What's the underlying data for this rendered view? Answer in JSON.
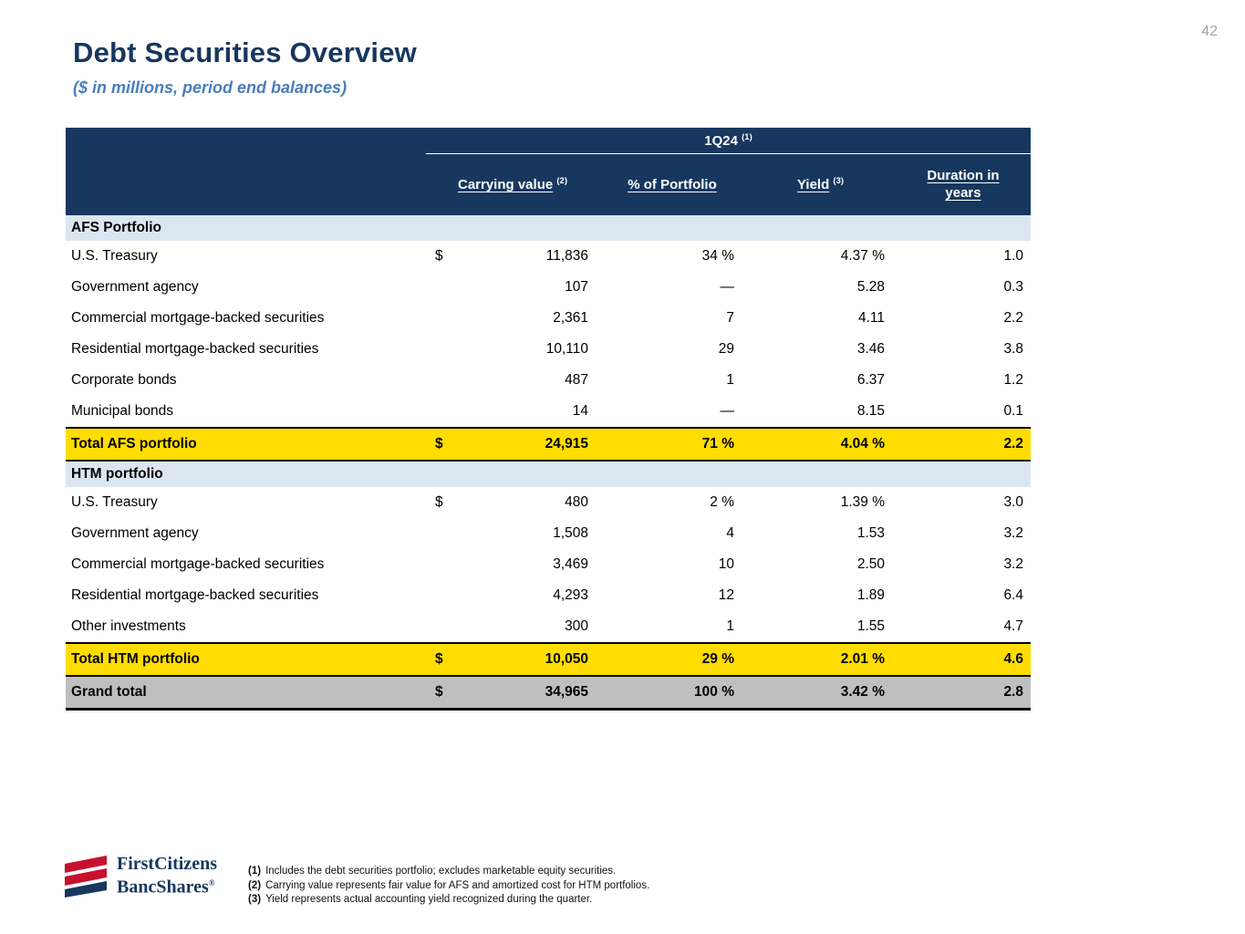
{
  "page": {
    "number": "42",
    "title": "Debt Securities Overview",
    "subtitle": "($ in millions, period end balances)"
  },
  "table": {
    "period": {
      "label": "1Q24",
      "footnote": "(1)"
    },
    "columns": [
      {
        "label": "Carrying value",
        "footnote": "(2)"
      },
      {
        "label": "% of Portfolio",
        "footnote": ""
      },
      {
        "label": "Yield",
        "footnote": "(3)"
      },
      {
        "label": "Duration in years",
        "footnote": ""
      }
    ],
    "rows": [
      {
        "type": "section",
        "label": "AFS Portfolio"
      },
      {
        "type": "data",
        "label": "U.S. Treasury",
        "dollar": "$",
        "carrying": "11,836",
        "pct": "34 %",
        "yield": "4.37 %",
        "duration": "1.0"
      },
      {
        "type": "data",
        "label": "Government agency",
        "dollar": "",
        "carrying": "107",
        "pct": "—",
        "yield": "5.28",
        "duration": "0.3"
      },
      {
        "type": "data",
        "label": "Commercial mortgage-backed securities",
        "dollar": "",
        "carrying": "2,361",
        "pct": "7",
        "yield": "4.11",
        "duration": "2.2"
      },
      {
        "type": "data",
        "label": "Residential mortgage-backed securities",
        "dollar": "",
        "carrying": "10,110",
        "pct": "29",
        "yield": "3.46",
        "duration": "3.8"
      },
      {
        "type": "data",
        "label": "Corporate bonds",
        "dollar": "",
        "carrying": "487",
        "pct": "1",
        "yield": "6.37",
        "duration": "1.2"
      },
      {
        "type": "data",
        "label": "Municipal bonds",
        "dollar": "",
        "carrying": "14",
        "pct": "—",
        "yield": "8.15",
        "duration": "0.1"
      },
      {
        "type": "total",
        "label": "Total AFS portfolio",
        "dollar": "$",
        "carrying": "24,915",
        "pct": "71 %",
        "yield": "4.04 %",
        "duration": "2.2"
      },
      {
        "type": "section",
        "label": "HTM portfolio"
      },
      {
        "type": "data",
        "label": "U.S. Treasury",
        "dollar": "$",
        "carrying": "480",
        "pct": "2 %",
        "yield": "1.39 %",
        "duration": "3.0"
      },
      {
        "type": "data",
        "label": "Government agency",
        "dollar": "",
        "carrying": "1,508",
        "pct": "4",
        "yield": "1.53",
        "duration": "3.2"
      },
      {
        "type": "data",
        "label": "Commercial mortgage-backed securities",
        "dollar": "",
        "carrying": "3,469",
        "pct": "10",
        "yield": "2.50",
        "duration": "3.2"
      },
      {
        "type": "data",
        "label": "Residential mortgage-backed securities",
        "dollar": "",
        "carrying": "4,293",
        "pct": "12",
        "yield": "1.89",
        "duration": "6.4"
      },
      {
        "type": "data",
        "label": "Other investments",
        "dollar": "",
        "carrying": "300",
        "pct": "1",
        "yield": "1.55",
        "duration": "4.7"
      },
      {
        "type": "total",
        "label": "Total HTM portfolio",
        "dollar": "$",
        "carrying": "10,050",
        "pct": "29 %",
        "yield": "2.01 %",
        "duration": "4.6"
      },
      {
        "type": "grand",
        "label": "Grand total",
        "dollar": "$",
        "carrying": "34,965",
        "pct": "100 %",
        "yield": "3.42 %",
        "duration": "2.8"
      }
    ]
  },
  "footnotes": [
    {
      "marker": "(1)",
      "text": "Includes the debt securities portfolio; excludes marketable equity securities."
    },
    {
      "marker": "(2)",
      "text": "Carrying value represents fair value for AFS and amortized cost for HTM portfolios."
    },
    {
      "marker": "(3)",
      "text": "Yield represents actual accounting yield recognized during the quarter."
    }
  ],
  "logo": {
    "line1": "FirstCitizens",
    "line2": "BancShares",
    "registered": "®"
  },
  "colors": {
    "navy": "#17375E",
    "subtitle_blue": "#4A7EBB",
    "section_bg": "#DCE6F1",
    "total_yellow": "#FFDD00",
    "grand_gray": "#BFBFBF",
    "logo_red": "#C8102E"
  }
}
